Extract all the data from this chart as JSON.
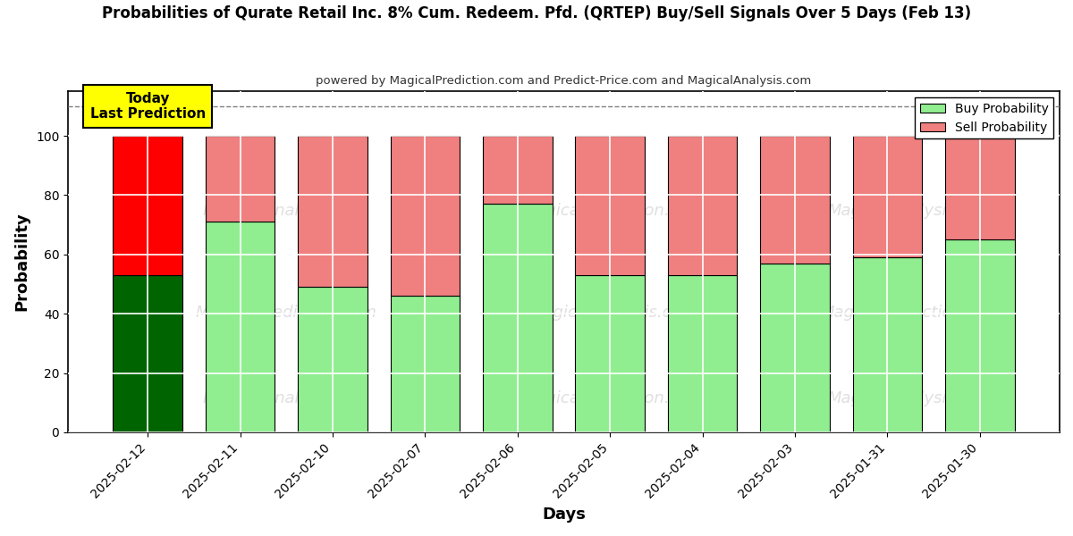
{
  "title": "Probabilities of Qurate Retail Inc. 8% Cum. Redeem. Pfd. (QRTEP) Buy/Sell Signals Over 5 Days (Feb 13)",
  "subtitle": "powered by MagicalPrediction.com and Predict-Price.com and MagicalAnalysis.com",
  "xlabel": "Days",
  "ylabel": "Probability",
  "dates": [
    "2025-02-12",
    "2025-02-11",
    "2025-02-10",
    "2025-02-07",
    "2025-02-06",
    "2025-02-05",
    "2025-02-04",
    "2025-02-03",
    "2025-01-31",
    "2025-01-30"
  ],
  "buy_probs": [
    53,
    71,
    49,
    46,
    77,
    53,
    53,
    57,
    59,
    65
  ],
  "sell_probs": [
    47,
    29,
    51,
    54,
    23,
    47,
    47,
    43,
    41,
    35
  ],
  "today_buy_color": "#006400",
  "today_sell_color": "#FF0000",
  "buy_color": "#90EE90",
  "sell_color": "#F08080",
  "today_annotation": "Today\nLast Prediction",
  "dashed_line_y": 110,
  "ylim": [
    0,
    115
  ],
  "yticks": [
    0,
    20,
    40,
    60,
    80,
    100
  ],
  "background_color": "#ffffff",
  "legend_buy_label": "Buy Probability",
  "legend_sell_label": "Sell Probability",
  "bar_width": 0.75
}
